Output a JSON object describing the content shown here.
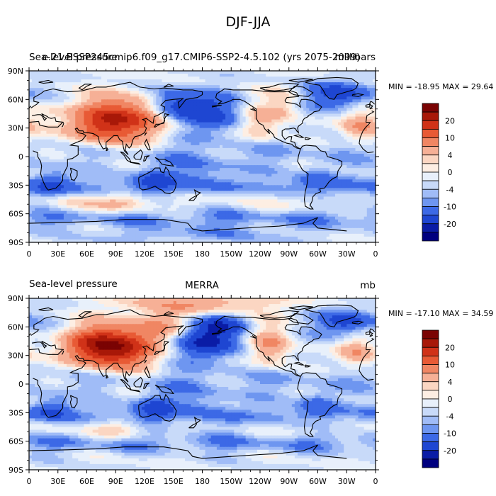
{
  "figure": {
    "title": "DJF-JJA"
  },
  "palette": [
    "#00007f",
    "#0a1ca6",
    "#1e46d2",
    "#3c69e6",
    "#6e96f0",
    "#a0bcf7",
    "#c8daf9",
    "#e8f0fb",
    "#fdeee3",
    "#fbd6c2",
    "#f6b096",
    "#f08663",
    "#e85a35",
    "#d03218",
    "#a81808",
    "#7a0303"
  ],
  "colorbar_labels": [
    "20",
    "10",
    "4",
    "0",
    "-4",
    "-10",
    "-20"
  ],
  "lat_labels": [
    "90N",
    "60N",
    "30N",
    "0",
    "30S",
    "60S",
    "90S"
  ],
  "lon_labels": [
    "0",
    "30E",
    "60E",
    "90E",
    "120E",
    "150E",
    "180",
    "150W",
    "120W",
    "90W",
    "60W",
    "30W",
    "0"
  ],
  "panels": [
    {
      "left_label": "Sea-level pressure",
      "center_label": "e.21.BSSP245cmip6.f09_g17.CMIP6-SSP2-4.5.102 (yrs 2075-2099)",
      "units": "millibars",
      "min_text": "MIN = -18.95",
      "max_text": "MAX =  29.64",
      "field": {
        "features": [
          {
            "lon": 100,
            "lat": 40,
            "amp": 22,
            "slon": 30,
            "slat": 16
          },
          {
            "lon": 70,
            "lat": 30,
            "amp": 10,
            "slon": 22,
            "slat": 14
          },
          {
            "lon": 150,
            "lat": 55,
            "amp": -14,
            "slon": 18,
            "slat": 12
          },
          {
            "lon": 185,
            "lat": 45,
            "amp": -12,
            "slon": 22,
            "slat": 15
          },
          {
            "lon": 240,
            "lat": 35,
            "amp": 7,
            "slon": 14,
            "slat": 14
          },
          {
            "lon": 265,
            "lat": 55,
            "amp": 5,
            "slon": 12,
            "slat": 12
          },
          {
            "lon": 325,
            "lat": 65,
            "amp": -14,
            "slon": 22,
            "slat": 10
          },
          {
            "lon": 345,
            "lat": 30,
            "amp": 10,
            "slon": 14,
            "slat": 12
          },
          {
            "lon": 20,
            "lat": 45,
            "amp": 4,
            "slon": 14,
            "slat": 12
          },
          {
            "lon": 100,
            "lat": -47,
            "amp": 9,
            "slon": 22,
            "slat": 8
          },
          {
            "lon": 40,
            "lat": -47,
            "amp": 5,
            "slon": 18,
            "slat": 8
          },
          {
            "lon": 210,
            "lat": -42,
            "amp": 4,
            "slon": 35,
            "slat": 7
          },
          {
            "lon": 290,
            "lat": -45,
            "amp": 4,
            "slon": 20,
            "slat": 8
          },
          {
            "lon": 130,
            "lat": -25,
            "amp": -8,
            "slon": 14,
            "slat": 10
          },
          {
            "lon": 25,
            "lat": -25,
            "amp": -7,
            "slon": 14,
            "slat": 10
          },
          {
            "lon": 300,
            "lat": -22,
            "amp": -6,
            "slon": 14,
            "slat": 10
          },
          {
            "lon": 180,
            "lat": -15,
            "amp": -5,
            "slon": 35,
            "slat": 10
          },
          {
            "lon": 180,
            "lat": -82,
            "amp": -4,
            "slon": 80,
            "slat": 6
          }
        ],
        "band": [
          {
            "lat": -33,
            "amp": -6,
            "width": 8
          },
          {
            "lat": -65,
            "amp": -5,
            "width": 7
          },
          {
            "lat": 5,
            "amp": -3,
            "width": 10
          }
        ]
      }
    },
    {
      "left_label": "Sea-level pressure",
      "center_label": "MERRA",
      "units": "mb",
      "min_text": "MIN = -17.10",
      "max_text": "MAX =  34.59",
      "field": {
        "features": [
          {
            "lon": 95,
            "lat": 38,
            "amp": 26,
            "slon": 26,
            "slat": 15
          },
          {
            "lon": 60,
            "lat": 40,
            "amp": 14,
            "slon": 22,
            "slat": 14
          },
          {
            "lon": 135,
            "lat": 60,
            "amp": 10,
            "slon": 22,
            "slat": 12
          },
          {
            "lon": 180,
            "lat": 45,
            "amp": -16,
            "slon": 25,
            "slat": 14
          },
          {
            "lon": 200,
            "lat": 62,
            "amp": -8,
            "slon": 20,
            "slat": 8
          },
          {
            "lon": 250,
            "lat": 40,
            "amp": 10,
            "slon": 14,
            "slat": 14
          },
          {
            "lon": 330,
            "lat": 65,
            "amp": -14,
            "slon": 20,
            "slat": 10
          },
          {
            "lon": 340,
            "lat": 32,
            "amp": 9,
            "slon": 14,
            "slat": 12
          },
          {
            "lon": 180,
            "lat": 85,
            "amp": 9,
            "slon": 60,
            "slat": 8
          },
          {
            "lon": 95,
            "lat": -47,
            "amp": 7,
            "slon": 20,
            "slat": 8
          },
          {
            "lon": 20,
            "lat": -45,
            "amp": 4,
            "slon": 15,
            "slat": 8
          },
          {
            "lon": 290,
            "lat": -45,
            "amp": 3,
            "slon": 20,
            "slat": 8
          },
          {
            "lon": 130,
            "lat": -25,
            "amp": -9,
            "slon": 14,
            "slat": 10
          },
          {
            "lon": 25,
            "lat": -25,
            "amp": -8,
            "slon": 14,
            "slat": 10
          },
          {
            "lon": 300,
            "lat": -20,
            "amp": -7,
            "slon": 14,
            "slat": 10
          },
          {
            "lon": 180,
            "lat": -15,
            "amp": -4,
            "slon": 35,
            "slat": 10
          }
        ],
        "band": [
          {
            "lat": -33,
            "amp": -5,
            "width": 8
          },
          {
            "lat": -62,
            "amp": -5,
            "width": 7
          },
          {
            "lat": 5,
            "amp": -3,
            "width": 10
          }
        ]
      }
    }
  ]
}
